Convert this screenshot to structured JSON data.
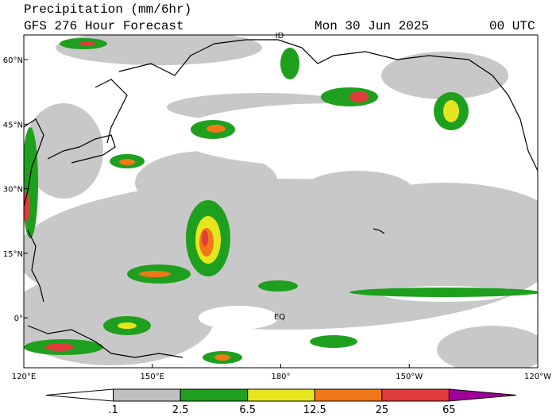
{
  "header": {
    "title": "Precipitation (mm/6hr)",
    "model": "GFS 276 Hour Forecast",
    "date": "Mon 30 Jun 2025",
    "time": "00 UTC"
  },
  "map": {
    "lat_labels": [
      "60°N",
      "45°N",
      "30°N",
      "15°N",
      "0°"
    ],
    "lon_labels": [
      "120°E",
      "150°E",
      "180°",
      "150°W",
      "120°W"
    ],
    "annotations": [
      "ID",
      "EQ"
    ]
  },
  "colorbar": {
    "labels": [
      ".1",
      "2.5",
      "6.5",
      "12.5",
      "25",
      "65"
    ],
    "colors": [
      "#ffffff",
      "#c0c0c0",
      "#1ea01e",
      "#e6e61e",
      "#f07818",
      "#e03c3c",
      "#a0009a"
    ]
  }
}
